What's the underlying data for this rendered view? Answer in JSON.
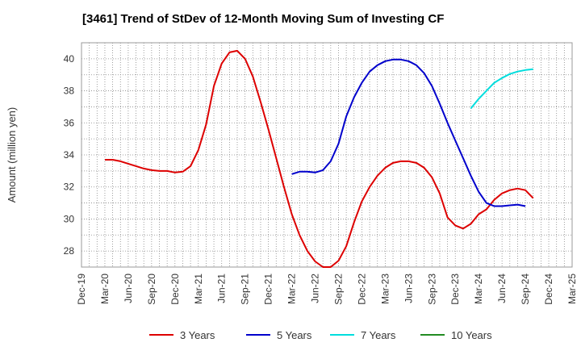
{
  "chart_data": {
    "type": "line",
    "title": "[3461]  Trend of StDev of 12-Month Moving Sum of Investing CF",
    "ylabel": "Amount (million yen)",
    "xlabel": "",
    "ylim": [
      27,
      41
    ],
    "yticks": [
      28,
      30,
      32,
      34,
      36,
      38,
      40
    ],
    "xtick_labels": [
      "Dec-19",
      "Mar-20",
      "Jun-20",
      "Sep-20",
      "Dec-20",
      "Mar-21",
      "Jun-21",
      "Sep-21",
      "Dec-21",
      "Mar-22",
      "Jun-22",
      "Sep-22",
      "Dec-22",
      "Mar-23",
      "Jun-23",
      "Sep-23",
      "Dec-23",
      "Mar-24",
      "Jun-24",
      "Sep-24",
      "Dec-24",
      "Mar-25"
    ],
    "grid": true,
    "legend_position": "bottom",
    "series": [
      {
        "name": "3 Years",
        "color": "#dd0000",
        "start": "Mar-20",
        "values": [
          33.7,
          33.7,
          33.6,
          33.45,
          33.3,
          33.15,
          33.05,
          33.0,
          33.0,
          32.9,
          32.95,
          33.3,
          34.3,
          35.9,
          38.3,
          39.7,
          40.4,
          40.5,
          40.0,
          38.9,
          37.3,
          35.6,
          33.8,
          32.0,
          30.3,
          29.0,
          28.0,
          27.35,
          27.0,
          27.0,
          27.4,
          28.3,
          29.8,
          31.1,
          32.0,
          32.7,
          33.2,
          33.5,
          33.6,
          33.6,
          33.5,
          33.2,
          32.6,
          31.6,
          30.1,
          29.6,
          29.4,
          29.7,
          30.3,
          30.6,
          31.2,
          31.6,
          31.8,
          31.9,
          31.8,
          31.3
        ]
      },
      {
        "name": "5 Years",
        "color": "#0000cc",
        "start": "Mar-22",
        "values": [
          32.8,
          32.95,
          32.95,
          32.9,
          33.05,
          33.6,
          34.7,
          36.4,
          37.6,
          38.5,
          39.2,
          39.6,
          39.85,
          39.95,
          39.95,
          39.85,
          39.6,
          39.1,
          38.3,
          37.2,
          36.0,
          34.9,
          33.8,
          32.7,
          31.7,
          31.0,
          30.8,
          30.8,
          30.85,
          30.9,
          30.8
        ]
      },
      {
        "name": "7 Years",
        "color": "#00dddd",
        "start": "Feb-24",
        "values": [
          36.9,
          37.5,
          38.0,
          38.5,
          38.8,
          39.05,
          39.2,
          39.3,
          39.35
        ]
      },
      {
        "name": "10 Years",
        "color": "#228b22",
        "start": "Feb-24",
        "values": []
      }
    ]
  }
}
